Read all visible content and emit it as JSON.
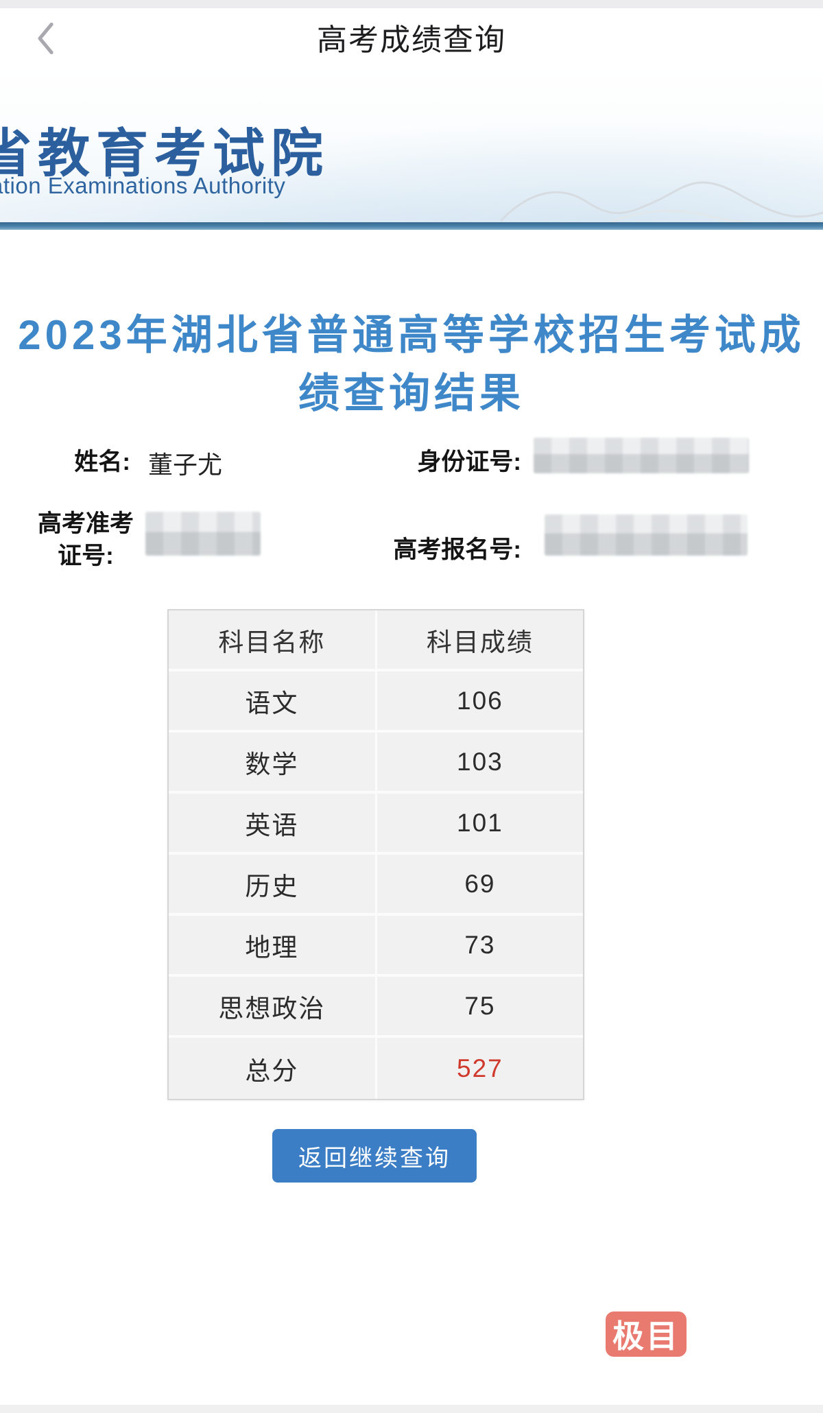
{
  "navbar": {
    "title": "高考成绩查询",
    "back_icon": "chevron-left"
  },
  "banner": {
    "logo_cn": "省教育考试院",
    "logo_en": "ation Examinations Authority",
    "mountain_sketch_icon": "mountain-outline"
  },
  "result": {
    "title_line1": "2023年湖北省普通高等学校招生考试成",
    "title_line2": "绩查询结果"
  },
  "info": {
    "fields": [
      {
        "label": "姓名:",
        "value": "董子尤",
        "redacted": false
      },
      {
        "label": "身份证号:",
        "value": "",
        "redacted": true
      },
      {
        "label": "高考准考证号:",
        "value": "",
        "redacted": true
      },
      {
        "label": "高考报名号:",
        "value": "",
        "redacted": true
      }
    ]
  },
  "table": {
    "headers": [
      "科目名称",
      "科目成绩"
    ],
    "rows": [
      {
        "subject": "语文",
        "score": "106",
        "highlight": false
      },
      {
        "subject": "数学",
        "score": "103",
        "highlight": false
      },
      {
        "subject": "英语",
        "score": "101",
        "highlight": false
      },
      {
        "subject": "历史",
        "score": "69",
        "highlight": false
      },
      {
        "subject": "地理",
        "score": "73",
        "highlight": false
      },
      {
        "subject": "思想政治",
        "score": "75",
        "highlight": false
      },
      {
        "subject": "总分",
        "score": "527",
        "highlight": true
      }
    ]
  },
  "button": {
    "label": "返回继续查询"
  },
  "watermark": {
    "label": "极目"
  },
  "colors": {
    "title_blue": "#3e87c9",
    "logo_blue": "#2b5f9e",
    "divider_blue": "#4a82aa",
    "button_blue": "#3b7ec6",
    "total_score_red": "#d03a2c",
    "watermark_red": "#e87a6f"
  }
}
